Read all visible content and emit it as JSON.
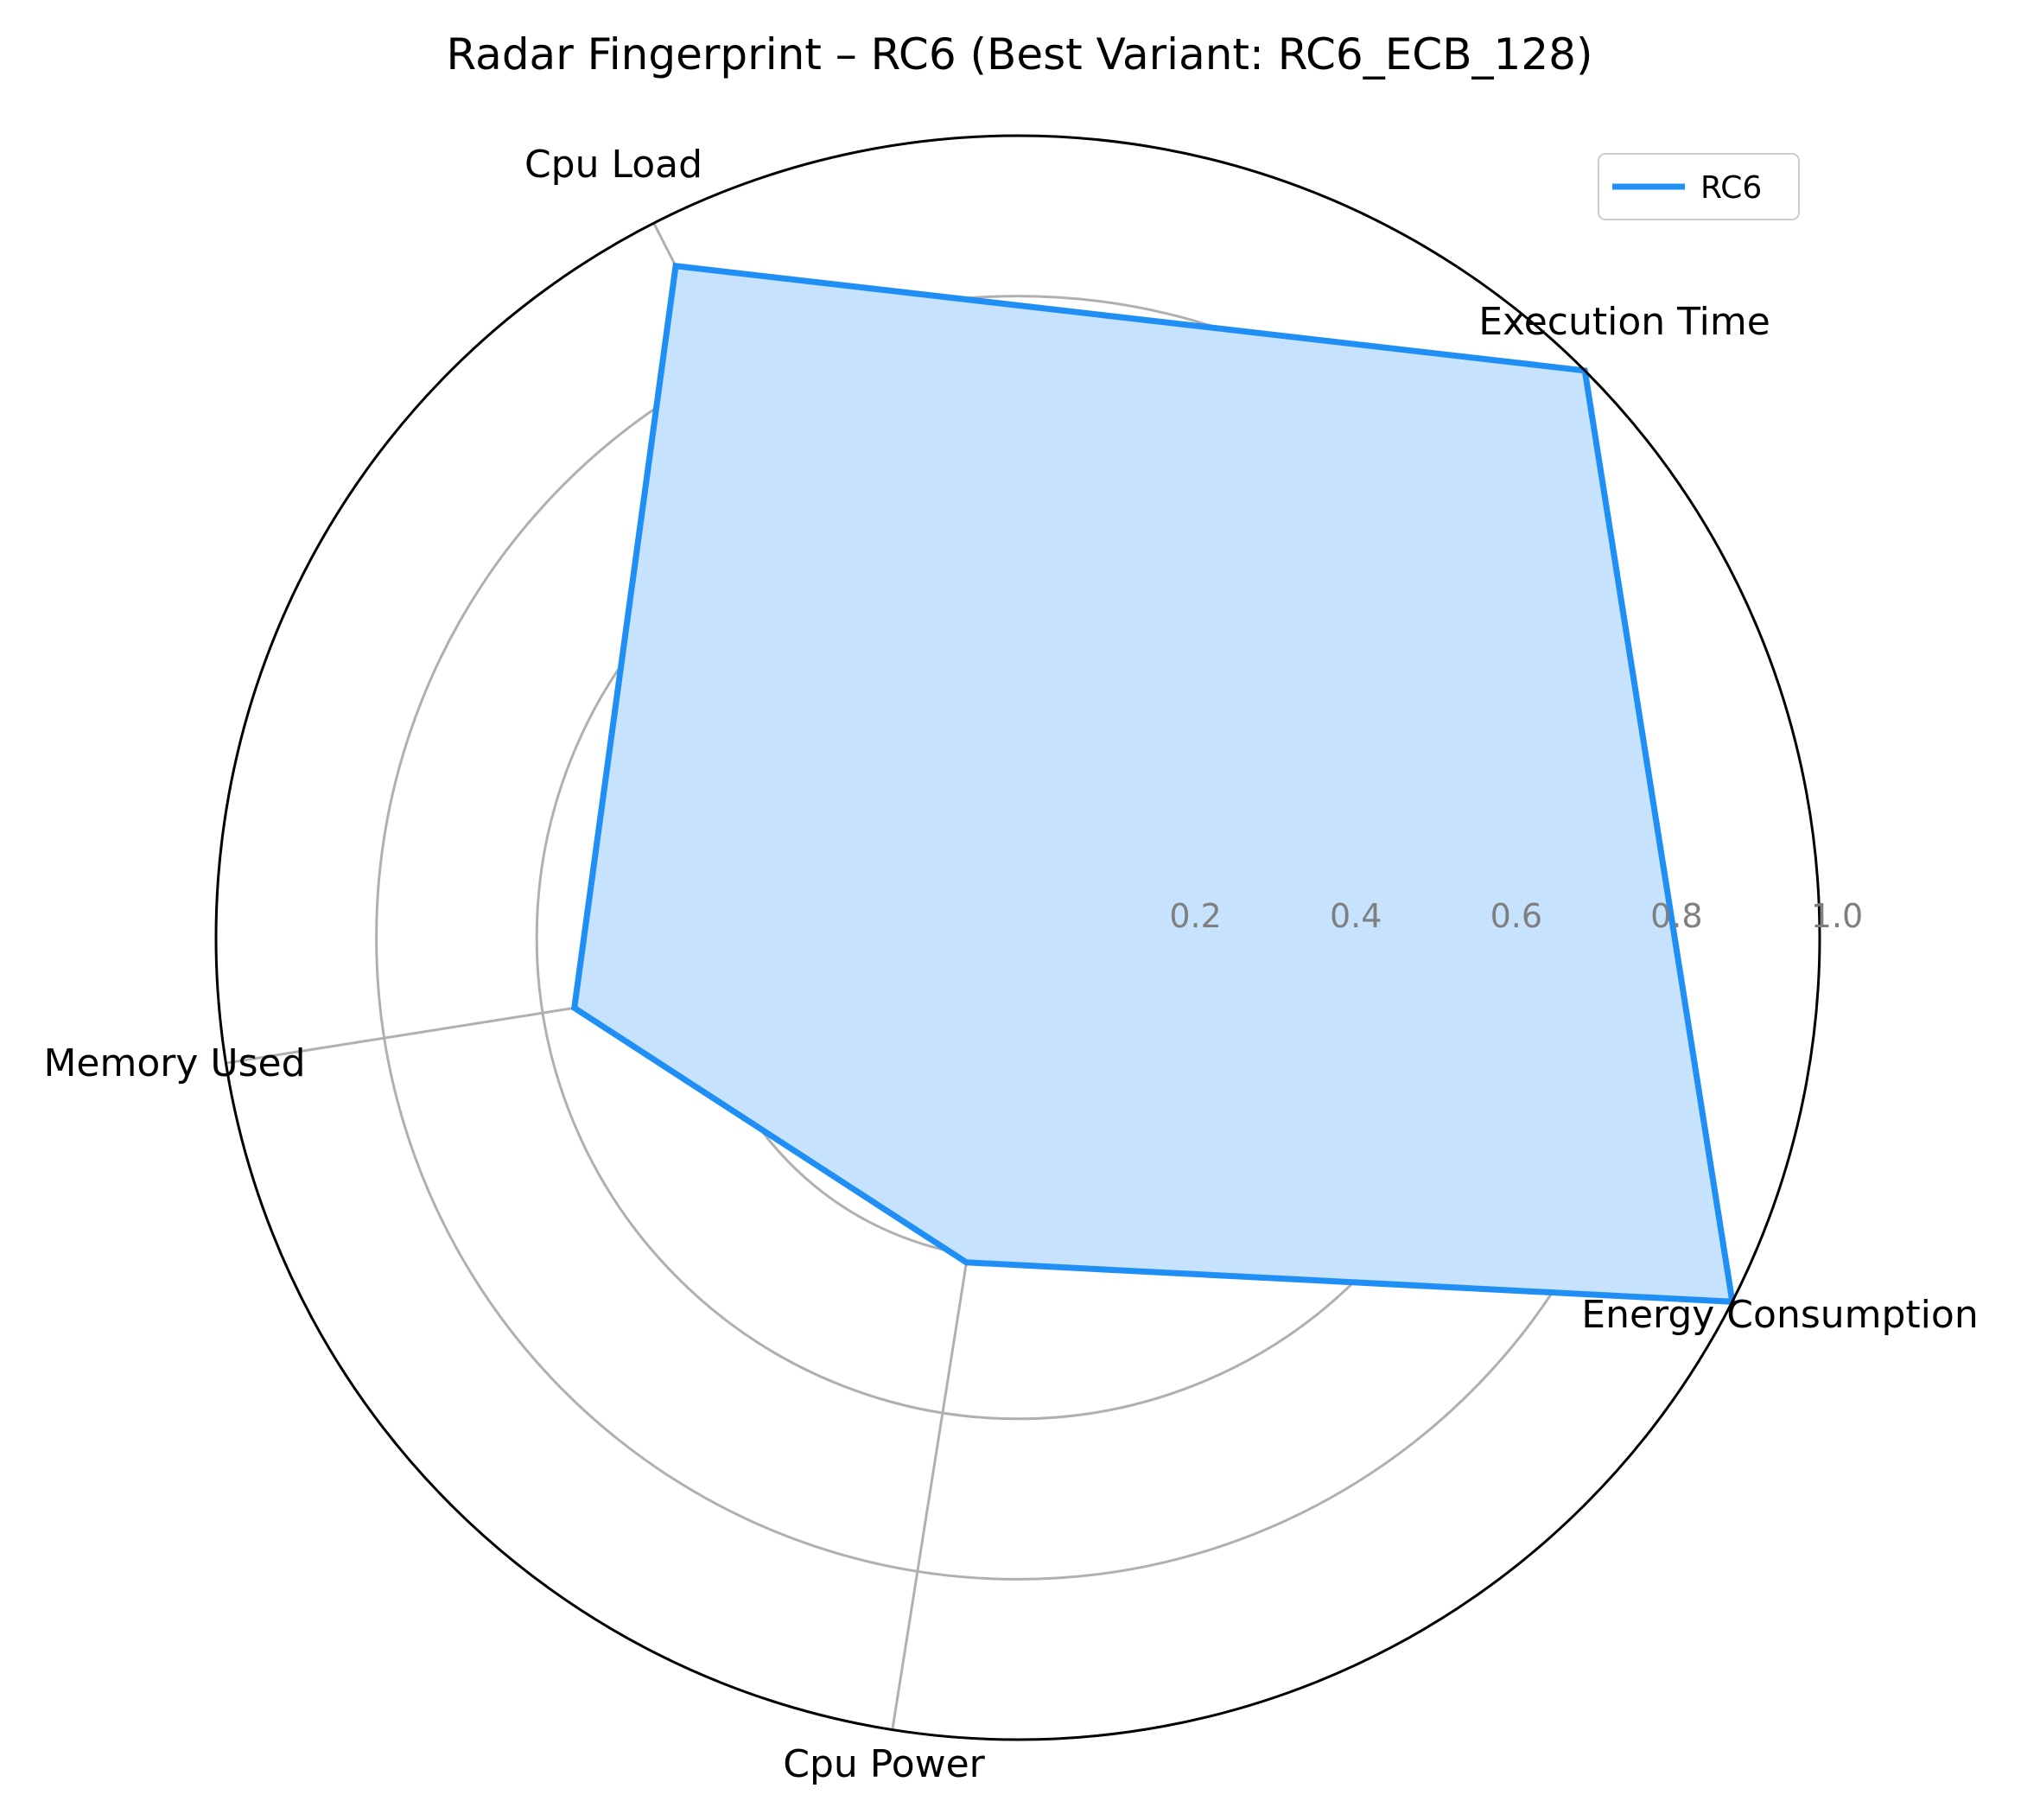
{
  "chart_data": {
    "type": "radar",
    "title": "Radar Fingerprint – RC6 (Best Variant: RC6_ECB_128)",
    "axes": [
      "Execution Time",
      "Cpu Load",
      "Memory Used",
      "Cpu Power",
      "Energy Consumption"
    ],
    "axis_angles_deg": [
      45,
      117,
      189,
      261,
      333
    ],
    "rlim": [
      0,
      1.0
    ],
    "r_ticks": [
      0.2,
      0.4,
      0.6,
      0.8,
      1.0
    ],
    "r_tick_labels": [
      "0.2",
      "0.4",
      "0.6",
      "0.8",
      "1.0"
    ],
    "grid": true,
    "legend_position": "top-right",
    "series": [
      {
        "name": "RC6",
        "values": [
          1.0,
          0.94,
          0.56,
          0.41,
          1.0
        ]
      }
    ],
    "colors": {
      "line": "#1f8ff5",
      "fill": "#c7e2fc",
      "grid": "#b0b0b0",
      "frame": "#000000"
    }
  }
}
